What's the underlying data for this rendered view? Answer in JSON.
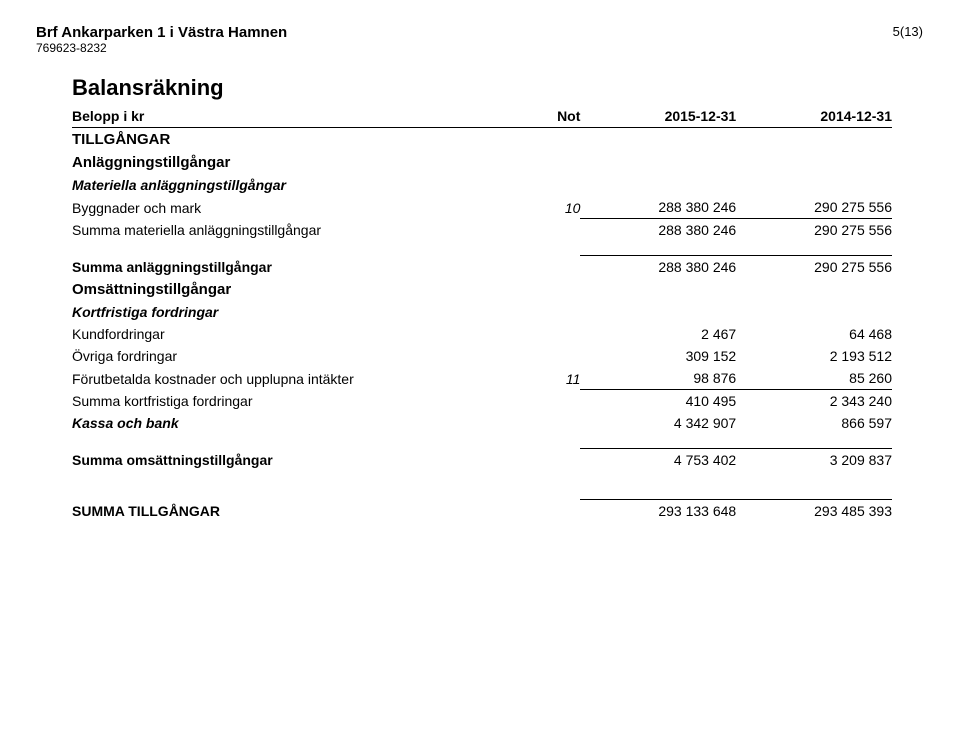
{
  "header": {
    "company": "Brf Ankarparken 1 i Västra Hamnen",
    "orgnr": "769623-8232",
    "page": "5(13)"
  },
  "title": "Balansräkning",
  "columns": {
    "label": "Belopp i kr",
    "note": "Not",
    "c1": "2015-12-31",
    "c2": "2014-12-31"
  },
  "s_tillgangar": "TILLGÅNGAR",
  "s_anlaggning": "Anläggningstillgångar",
  "s_materiella": "Materiella anläggningstillgångar",
  "r_byggnader": {
    "label": "Byggnader och mark",
    "note": "10",
    "v1": "288 380 246",
    "v2": "290 275 556"
  },
  "r_summa_mat": {
    "label": "Summa materiella anläggningstillgångar",
    "v1": "288 380 246",
    "v2": "290 275 556"
  },
  "r_summa_anl": {
    "label": "Summa anläggningstillgångar",
    "v1": "288 380 246",
    "v2": "290 275 556"
  },
  "s_omsattning": "Omsättningstillgångar",
  "s_kortfrist": "Kortfristiga fordringar",
  "r_kund": {
    "label": "Kundfordringar",
    "v1": "2 467",
    "v2": "64 468"
  },
  "r_ovriga": {
    "label": "Övriga fordringar",
    "v1": "309 152",
    "v2": "2 193 512"
  },
  "r_forut": {
    "label": "Förutbetalda kostnader och upplupna intäkter",
    "note": "11",
    "v1": "98 876",
    "v2": "85 260"
  },
  "r_summa_kort": {
    "label": "Summa kortfristiga fordringar",
    "v1": "410 495",
    "v2": "2 343 240"
  },
  "r_kassa": {
    "label": "Kassa och bank",
    "v1": "4 342 907",
    "v2": "866 597"
  },
  "r_summa_oms": {
    "label": "Summa omsättningstillgångar",
    "v1": "4 753 402",
    "v2": "3 209 837"
  },
  "r_summa_till": {
    "label": "SUMMA TILLGÅNGAR",
    "v1": "293 133 648",
    "v2": "293 485 393"
  }
}
